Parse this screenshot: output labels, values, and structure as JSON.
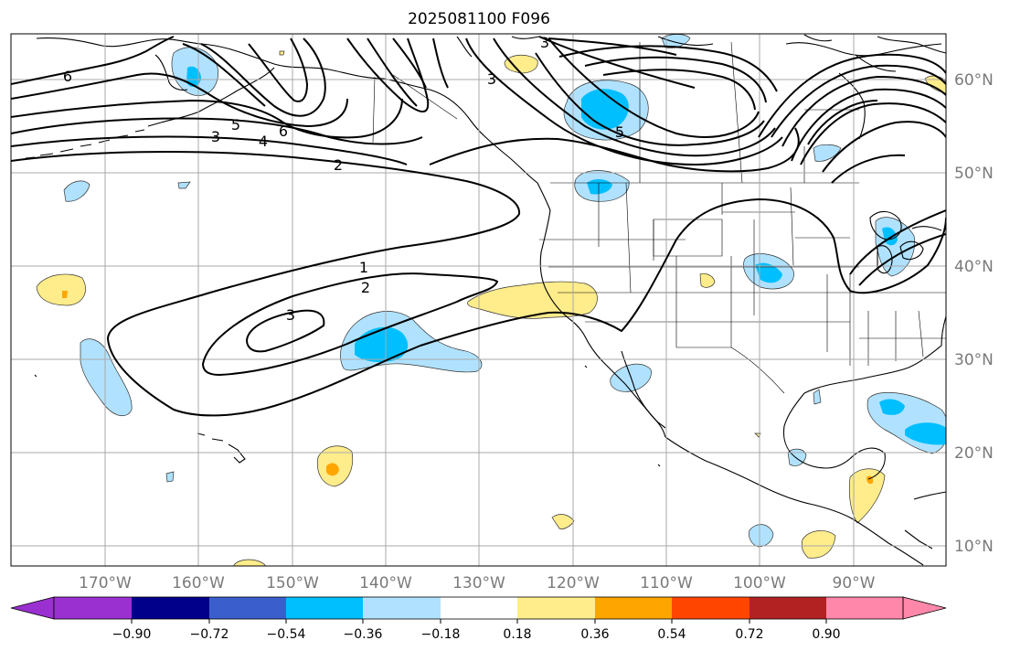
{
  "title": "2025081100 F096",
  "longitude_labels": [
    "170°W",
    "160°W",
    "150°W",
    "140°W",
    "130°W",
    "120°W",
    "110°W",
    "100°W",
    "90°W"
  ],
  "latitude_labels": [
    "60°N",
    "50°N",
    "40°N",
    "30°N",
    "20°N",
    "10°N"
  ],
  "colorbar": {
    "ticks": [
      "−0.90",
      "−0.72",
      "−0.54",
      "−0.36",
      "−0.18",
      "0.18",
      "0.36",
      "0.54",
      "0.72",
      "0.90"
    ],
    "colors": [
      "#9b30d0",
      "#00008b",
      "#3a5fcd",
      "#00bfff",
      "#b0e2ff",
      "#ffffff",
      "#ffec8b",
      "#ffa500",
      "#ff4500",
      "#b22222",
      "#ff88aa"
    ]
  },
  "contour_labels": [
    "6",
    "5",
    "6",
    "4",
    "3",
    "2",
    "3",
    "3",
    "5",
    "1",
    "2",
    "3"
  ],
  "colors": {
    "light_blue": "#b0e2ff",
    "blue": "#00bfff",
    "light_yellow": "#ffec8b",
    "orange": "#ffa500",
    "grid": "#a8a8a8",
    "contour": "#000000"
  }
}
